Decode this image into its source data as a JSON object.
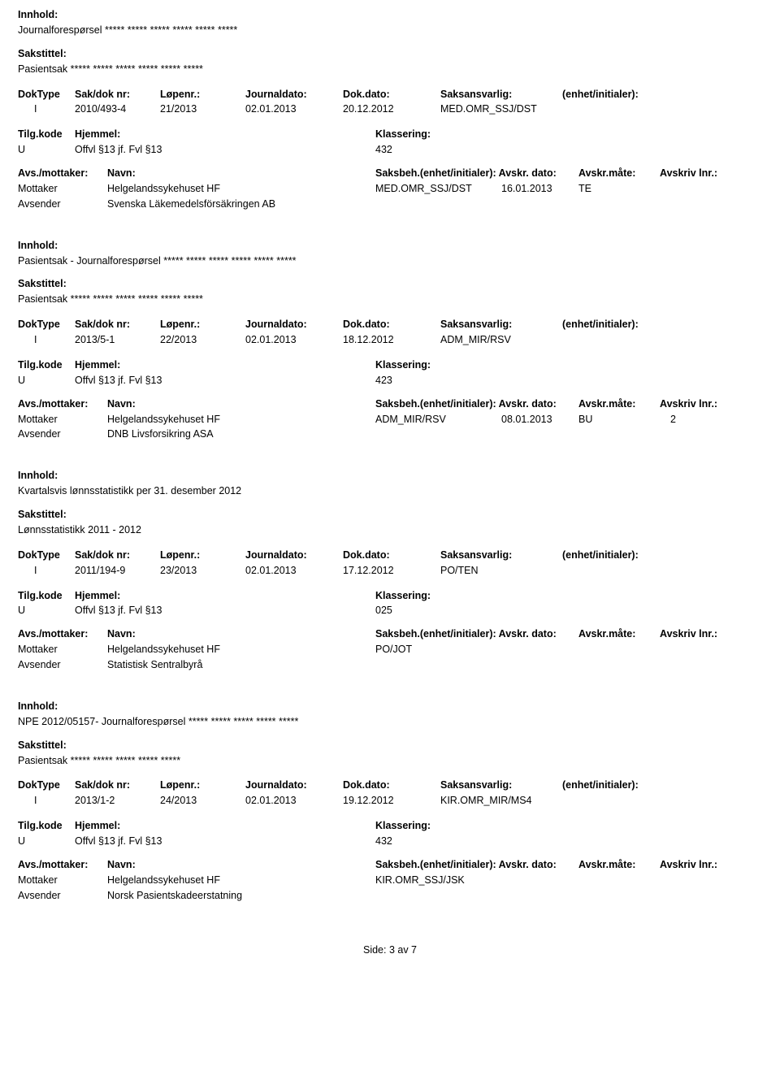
{
  "labels": {
    "innhold": "Innhold:",
    "sakstittel": "Sakstittel:",
    "doktype": "DokType",
    "saknr": "Sak/dok nr:",
    "lopenr": "Løpenr.:",
    "journaldato": "Journaldato:",
    "dokdato": "Dok.dato:",
    "saksansvarlig": "Saksansvarlig:",
    "enhet": "(enhet/initialer):",
    "tilgkode": "Tilg.kode",
    "hjemmel": "Hjemmel:",
    "klassering": "Klassering:",
    "avs_mottaker": "Avs./mottaker:",
    "navn": "Navn:",
    "saksbeh_enhet": "Saksbeh.(enhet/initialer):",
    "avskr_dato": "Avskr. dato:",
    "avskr_mate": "Avskr.måte:",
    "avskriv_lnr": "Avskriv lnr.:",
    "mottaker": "Mottaker",
    "avsender": "Avsender"
  },
  "entries": [
    {
      "innhold": "Journalforespørsel  ***** ***** ***** ***** ***** *****",
      "sakstittel": "Pasientsak ***** ***** ***** ***** ***** *****",
      "doktype": "I",
      "saknr": "2010/493-4",
      "lopenr": "21/2013",
      "jdato": "02.01.2013",
      "ddato": "20.12.2012",
      "saksansv": "MED.OMR_SSJ/DST",
      "tilgkode": "U",
      "hjemmel": "Offvl §13 jf. Fvl §13",
      "klassering": "432",
      "mottaker_navn": "Helgelandssykehuset HF",
      "mottaker_saksbeh": "MED.OMR_SSJ/DST",
      "mottaker_avskrdato": "16.01.2013",
      "mottaker_avskrmate": "TE",
      "mottaker_avskrivlnr": "",
      "avsender_navn": "Svenska Läkemedelsförsäkringen AB"
    },
    {
      "innhold": "Pasientsak - Journalforespørsel ***** ***** ***** ***** ***** *****",
      "sakstittel": "Pasientsak ***** ***** ***** ***** ***** *****",
      "doktype": "I",
      "saknr": "2013/5-1",
      "lopenr": "22/2013",
      "jdato": "02.01.2013",
      "ddato": "18.12.2012",
      "saksansv": "ADM_MIR/RSV",
      "tilgkode": "U",
      "hjemmel": "Offvl §13 jf. Fvl §13",
      "klassering": "423",
      "mottaker_navn": "Helgelandssykehuset HF",
      "mottaker_saksbeh": "ADM_MIR/RSV",
      "mottaker_avskrdato": "08.01.2013",
      "mottaker_avskrmate": "BU",
      "mottaker_avskrivlnr": "2",
      "avsender_navn": "DNB Livsforsikring ASA"
    },
    {
      "innhold": "Kvartalsvis lønnsstatistikk per 31. desember 2012",
      "sakstittel": "Lønnsstatistikk 2011 - 2012",
      "doktype": "I",
      "saknr": "2011/194-9",
      "lopenr": "23/2013",
      "jdato": "02.01.2013",
      "ddato": "17.12.2012",
      "saksansv": "PO/TEN",
      "tilgkode": "U",
      "hjemmel": "Offvl §13 jf. Fvl §13",
      "klassering": "025",
      "mottaker_navn": "Helgelandssykehuset HF",
      "mottaker_saksbeh": "PO/JOT",
      "mottaker_avskrdato": "",
      "mottaker_avskrmate": "",
      "mottaker_avskrivlnr": "",
      "avsender_navn": "Statistisk Sentralbyrå"
    },
    {
      "innhold": "NPE 2012/05157- Journalforespørsel ***** ***** ***** ***** *****",
      "sakstittel": "Pasientsak ***** ***** ***** ***** *****",
      "doktype": "I",
      "saknr": "2013/1-2",
      "lopenr": "24/2013",
      "jdato": "02.01.2013",
      "ddato": "19.12.2012",
      "saksansv": "KIR.OMR_MIR/MS4",
      "tilgkode": "U",
      "hjemmel": "Offvl §13 jf. Fvl §13",
      "klassering": "432",
      "mottaker_navn": "Helgelandssykehuset HF",
      "mottaker_saksbeh": "KIR.OMR_SSJ/JSK",
      "mottaker_avskrdato": "",
      "mottaker_avskrmate": "",
      "mottaker_avskrivlnr": "",
      "avsender_navn": "Norsk Pasientskadeerstatning"
    }
  ],
  "footer": "Side: 3 av 7"
}
